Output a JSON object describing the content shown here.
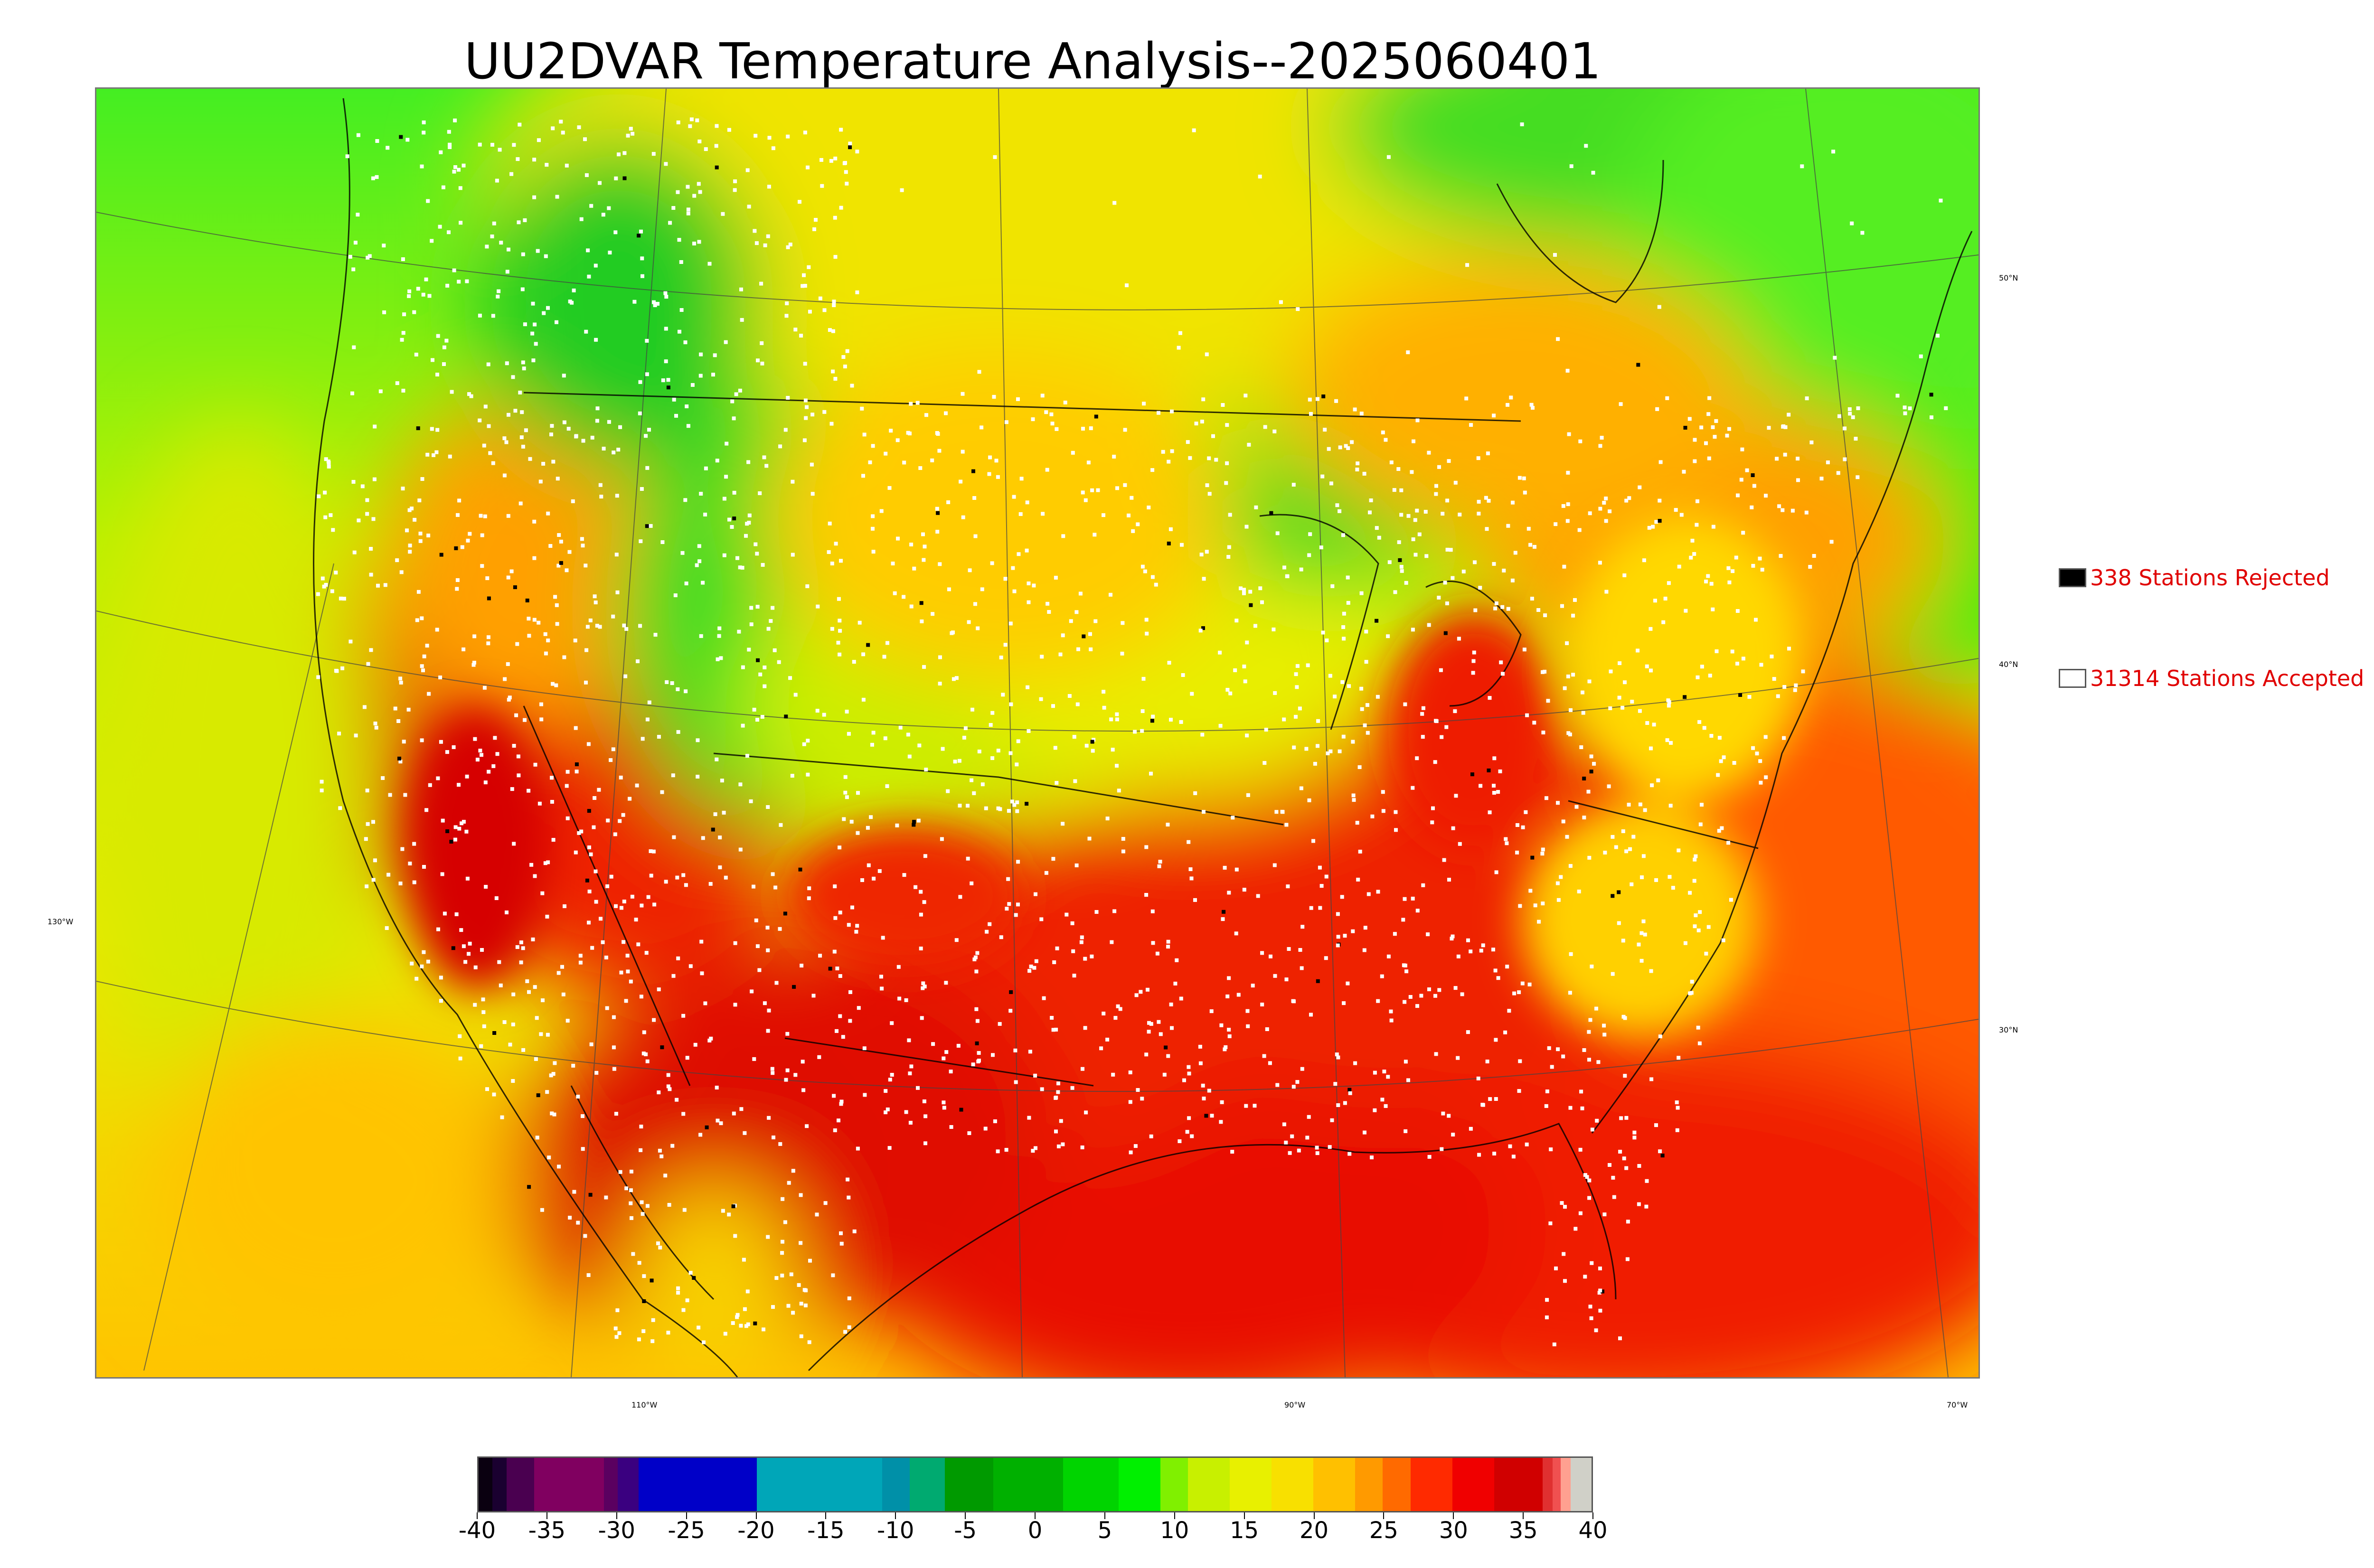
{
  "title": "UU2DVAR Temperature Analysis--2025060401",
  "map": {
    "lat_labels": [
      "50°N",
      "40°N",
      "30°N"
    ],
    "lon_labels": [
      "130°W",
      "110°W",
      "90°W",
      "70°W"
    ],
    "colors": {
      "cold_green": "#22cc22",
      "green": "#33ee33",
      "yellow_green": "#ccf000",
      "yellow": "#f2e600",
      "orange": "#ffb800",
      "dark_orange": "#ff7a00",
      "red": "#ee1a00",
      "dark_red": "#cc0000",
      "station_accepted": "#ffffff",
      "station_rejected": "#000000"
    }
  },
  "legend": {
    "rejected": {
      "count": "338",
      "label": "338 Stations Rejected",
      "swatch": "#000000",
      "text_color": "#e00000"
    },
    "accepted": {
      "count": "31314",
      "label": "31314 Stations Accepted",
      "swatch": "#ffffff",
      "text_color": "#e00000"
    }
  },
  "colorbar": {
    "min": -40,
    "max": 40,
    "tick_labels": [
      "-40",
      "-35",
      "-30",
      "-25",
      "-20",
      "-15",
      "-10",
      "-5",
      "0",
      "5",
      "10",
      "15",
      "20",
      "25",
      "30",
      "35",
      "40"
    ],
    "segments": [
      {
        "from": -40,
        "to": -39,
        "color": "#0a0010"
      },
      {
        "from": -39,
        "to": -38,
        "color": "#1a0030"
      },
      {
        "from": -38,
        "to": -36,
        "color": "#4a0050"
      },
      {
        "from": -36,
        "to": -31,
        "color": "#800060"
      },
      {
        "from": -31,
        "to": -30,
        "color": "#5a0060"
      },
      {
        "from": -30,
        "to": -28.5,
        "color": "#3a0080"
      },
      {
        "from": -28.5,
        "to": -20,
        "color": "#0000c8"
      },
      {
        "from": -20,
        "to": -11,
        "color": "#00a6b8"
      },
      {
        "from": -11,
        "to": -9,
        "color": "#0090a8"
      },
      {
        "from": -9,
        "to": -6.5,
        "color": "#00aa70"
      },
      {
        "from": -6.5,
        "to": -3,
        "color": "#009a00"
      },
      {
        "from": -3,
        "to": 2,
        "color": "#00b000"
      },
      {
        "from": 2,
        "to": 6,
        "color": "#00d400"
      },
      {
        "from": 6,
        "to": 9,
        "color": "#00f000"
      },
      {
        "from": 9,
        "to": 11,
        "color": "#80f000"
      },
      {
        "from": 11,
        "to": 14,
        "color": "#c8f000"
      },
      {
        "from": 14,
        "to": 17,
        "color": "#e8f000"
      },
      {
        "from": 17,
        "to": 20,
        "color": "#f8e000"
      },
      {
        "from": 20,
        "to": 23,
        "color": "#ffc000"
      },
      {
        "from": 23,
        "to": 25,
        "color": "#ff9a00"
      },
      {
        "from": 25,
        "to": 27,
        "color": "#ff6a00"
      },
      {
        "from": 27,
        "to": 30,
        "color": "#ff2a00"
      },
      {
        "from": 30,
        "to": 33,
        "color": "#f00000"
      },
      {
        "from": 33,
        "to": 36.5,
        "color": "#d00000"
      },
      {
        "from": 36.5,
        "to": 37.2,
        "color": "#e03030"
      },
      {
        "from": 37.2,
        "to": 37.8,
        "color": "#f05050"
      },
      {
        "from": 37.8,
        "to": 38.5,
        "color": "#ffa090"
      },
      {
        "from": 38.5,
        "to": 40,
        "color": "#d0d0c8"
      }
    ]
  }
}
